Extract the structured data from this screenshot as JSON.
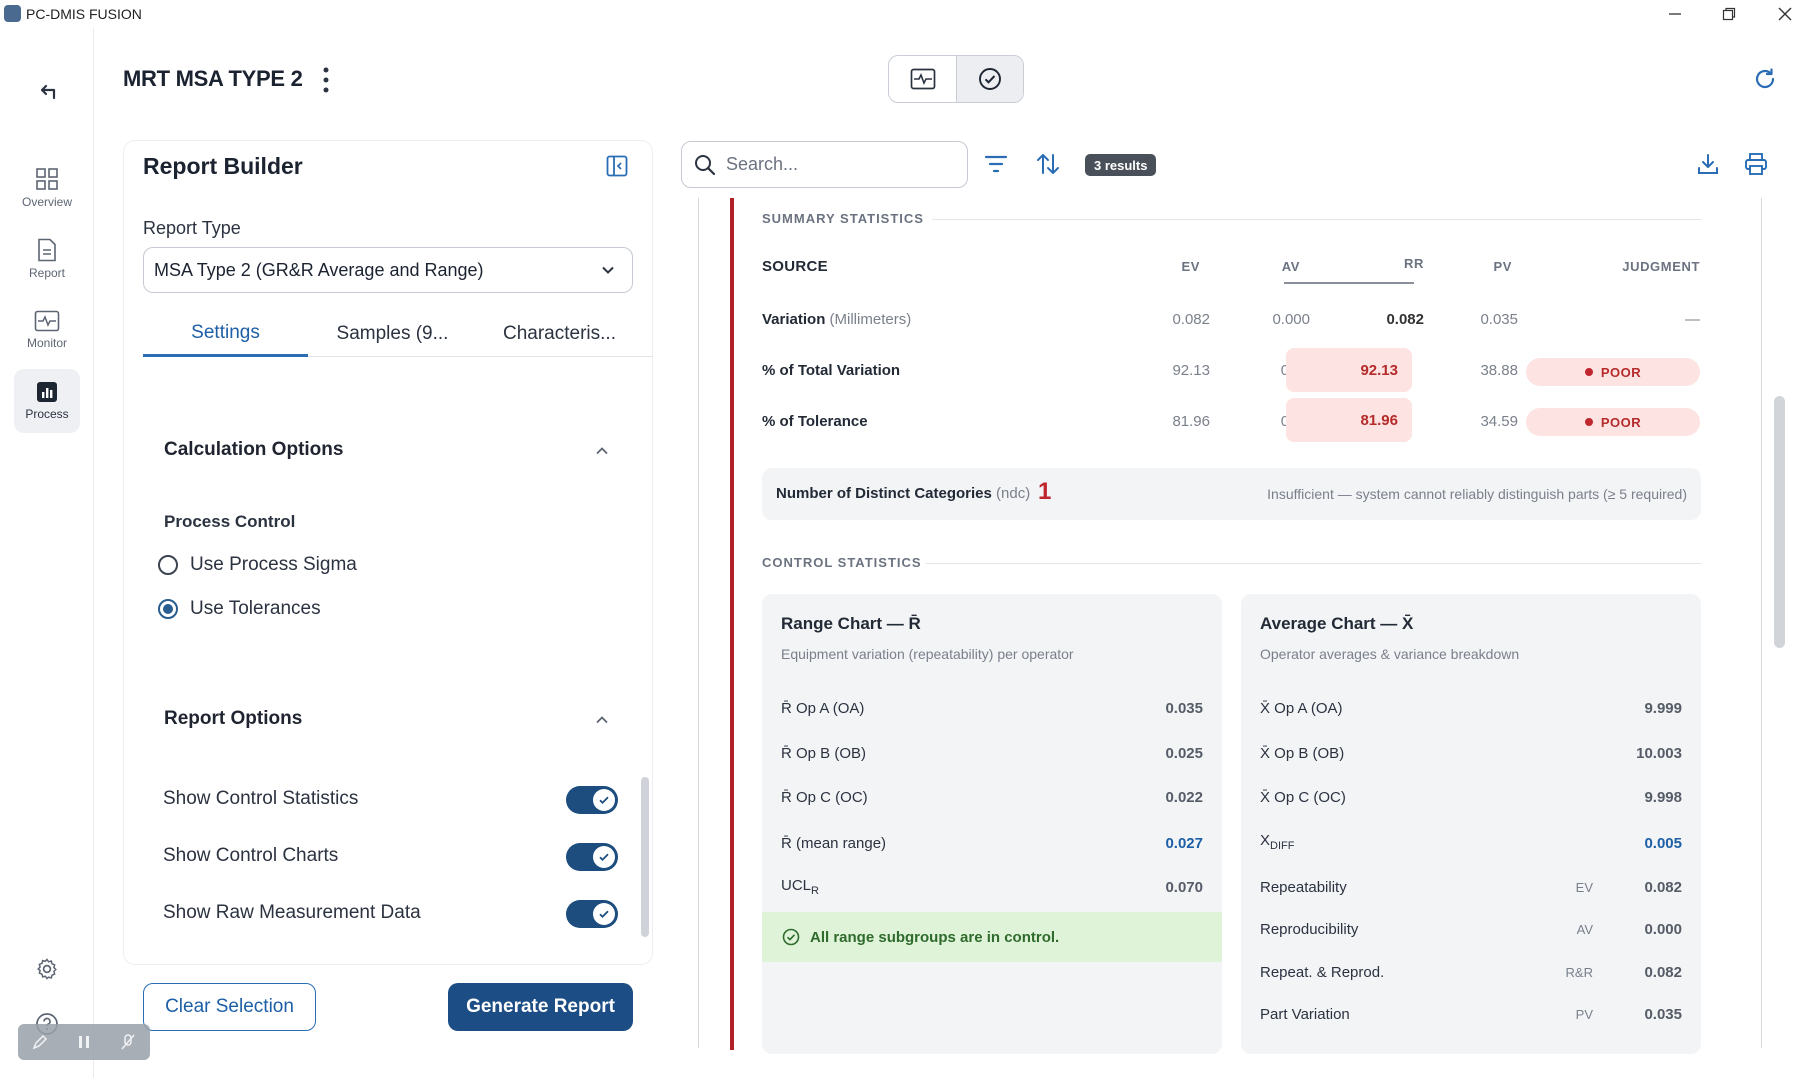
{
  "app": {
    "title": "PC-DMIS FUSION"
  },
  "rail": {
    "items": [
      {
        "label": "Overview",
        "icon": "grid-icon"
      },
      {
        "label": "Report",
        "icon": "document-icon"
      },
      {
        "label": "Monitor",
        "icon": "monitor-icon"
      },
      {
        "label": "Process",
        "icon": "bar-chart-icon",
        "active": true
      }
    ]
  },
  "header": {
    "title": "MRT MSA TYPE 2"
  },
  "panel": {
    "title": "Report Builder",
    "report_type_label": "Report Type",
    "report_type_value": "MSA Type 2 (GR&R Average and Range)",
    "tabs": [
      "Settings",
      "Samples (9...",
      "Characteris..."
    ],
    "calc_title": "Calculation Options",
    "process_control_title": "Process Control",
    "radio_options": [
      {
        "label": "Use Process Sigma",
        "selected": false
      },
      {
        "label": "Use Tolerances",
        "selected": true
      }
    ],
    "report_options_title": "Report Options",
    "toggles": [
      {
        "label": "Show Control Statistics",
        "on": true
      },
      {
        "label": "Show Control Charts",
        "on": true
      },
      {
        "label": "Show Raw Measurement Data",
        "on": true
      }
    ],
    "clear_label": "Clear Selection",
    "generate_label": "Generate Report"
  },
  "toolbar": {
    "search_placeholder": "Search...",
    "results_badge": "3 results"
  },
  "summary": {
    "section_label": "SUMMARY STATISTICS",
    "headers": {
      "source": "SOURCE",
      "ev": "EV",
      "av": "AV",
      "rr": "RR",
      "pv": "PV",
      "judgment": "JUDGMENT"
    },
    "rows": [
      {
        "label": "Variation",
        "unit": "(Millimeters)",
        "ev": "0.082",
        "av": "0.000",
        "rr": "0.082",
        "pv": "0.035",
        "judgment": "—"
      },
      {
        "label": "% of Total Variation",
        "unit": "",
        "ev": "92.13",
        "av": "0.00",
        "rr": "92.13",
        "pv": "38.88",
        "judgment": "POOR"
      },
      {
        "label": "% of Tolerance",
        "unit": "",
        "ev": "81.96",
        "av": "0.00",
        "rr": "81.96",
        "pv": "34.59",
        "judgment": "POOR"
      }
    ],
    "ndc_label": "Number of Distinct Categories",
    "ndc_unit": "(ndc)",
    "ndc_value": "1",
    "ndc_note": "Insufficient — system cannot reliably distinguish parts (≥ 5 required)"
  },
  "control": {
    "section_label": "CONTROL STATISTICS",
    "range_card": {
      "title": "Range Chart — R̄",
      "subtitle": "Equipment variation (repeatability) per operator",
      "rows": [
        {
          "label": "R̄ Op A (OA)",
          "value": "0.035"
        },
        {
          "label": "R̄ Op B (OB)",
          "value": "0.025"
        },
        {
          "label": "R̄ Op C (OC)",
          "value": "0.022"
        },
        {
          "label": "R̄ (mean range)",
          "value": "0.027"
        }
      ],
      "ucl_label": "UCL",
      "ucl_sub": "R",
      "ucl_value": "0.070",
      "in_control": "All range subgroups are in control."
    },
    "average_card": {
      "title": "Average Chart — X̄",
      "subtitle": "Operator averages & variance breakdown",
      "rows": [
        {
          "label": "X̄ Op A (OA)",
          "value": "9.999"
        },
        {
          "label": "X̄ Op B (OB)",
          "value": "10.003"
        },
        {
          "label": "X̄ Op C (OC)",
          "value": "9.998"
        }
      ],
      "xdiff_label": "X",
      "xdiff_sub": "DIFF",
      "xdiff_value": "0.005",
      "breakdown": [
        {
          "label": "Repeatability",
          "tag": "EV",
          "value": "0.082"
        },
        {
          "label": "Reproducibility",
          "tag": "AV",
          "value": "0.000"
        },
        {
          "label": "Repeat. & Reprod.",
          "tag": "R&R",
          "value": "0.082"
        },
        {
          "label": "Part Variation",
          "tag": "PV",
          "value": "0.035"
        }
      ]
    }
  },
  "colors": {
    "accent": "#1c4d84",
    "poor": "#c0262e",
    "ok_bg": "#dff3d8",
    "rail_active": "#eef0f4"
  }
}
